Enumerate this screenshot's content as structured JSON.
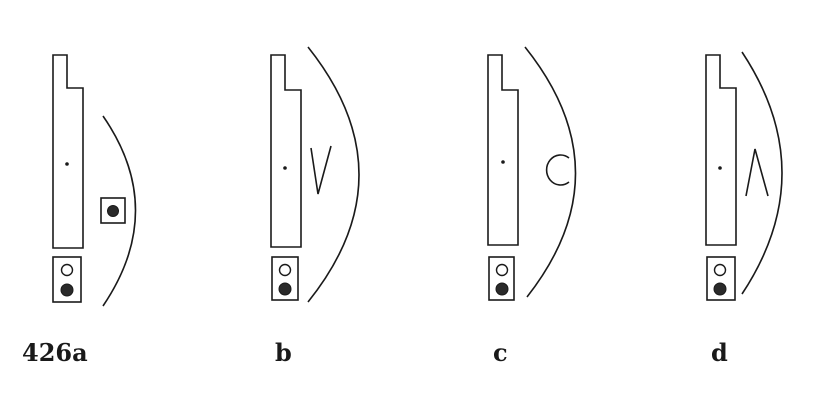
{
  "colors": {
    "ink": "#1a1a1a",
    "paper": "#ffffff",
    "filled_dot": "#2a2a2a"
  },
  "panels": [
    {
      "label": "426a",
      "element_names": [
        "rectangle",
        "center-dot",
        "arc",
        "small-box-filled-dot",
        "box-open-and-filled-dots"
      ]
    },
    {
      "label": "b",
      "element_names": [
        "rectangle",
        "center-dot",
        "arc",
        "v-mark",
        "box-open-and-filled-dots"
      ]
    },
    {
      "label": "c",
      "element_names": [
        "rectangle",
        "center-dot",
        "arc",
        "c-mark",
        "box-open-and-filled-dots"
      ]
    },
    {
      "label": "d",
      "element_names": [
        "rectangle",
        "center-dot",
        "arc",
        "caret-mark",
        "box-open-and-filled-dots"
      ]
    }
  ]
}
